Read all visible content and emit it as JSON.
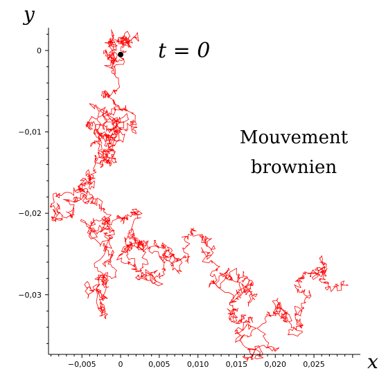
{
  "chart_data": {
    "type": "line",
    "xlabel": "x",
    "ylabel": "y",
    "xlim": [
      -0.0095,
      0.031
    ],
    "ylim": [
      -0.0375,
      0.0028
    ],
    "x_ticks": [
      {
        "value": -0.005,
        "label": "−0,005"
      },
      {
        "value": 0,
        "label": "0"
      },
      {
        "value": 0.005,
        "label": "0,005"
      },
      {
        "value": 0.01,
        "label": "0,010"
      },
      {
        "value": 0.015,
        "label": "0,015"
      },
      {
        "value": 0.02,
        "label": "0,020"
      },
      {
        "value": 0.025,
        "label": "0,025"
      }
    ],
    "y_ticks": [
      {
        "value": 0,
        "label": "0"
      },
      {
        "value": -0.01,
        "label": "−0,01"
      },
      {
        "value": -0.02,
        "label": "−0,02"
      },
      {
        "value": -0.03,
        "label": "−0,03"
      }
    ],
    "annotations": {
      "start_label": "t = 0",
      "title_line1": "Mouvement",
      "title_line2": "brownien"
    },
    "start_point": {
      "x": 0,
      "y": -0.0005
    },
    "series": [
      {
        "color": "#ff0000",
        "random_walk": true,
        "waypoints": [
          [
            0,
            -0.0005
          ],
          [
            0.0005,
            0.0018
          ],
          [
            -0.0012,
            0.001
          ],
          [
            -0.002,
            -0.002
          ],
          [
            -0.0025,
            -0.005
          ],
          [
            -0.002,
            -0.0075
          ],
          [
            -0.004,
            -0.009
          ],
          [
            -0.002,
            -0.0105
          ],
          [
            0.0005,
            -0.0085
          ],
          [
            0.0015,
            -0.01
          ],
          [
            -0.001,
            -0.0115
          ],
          [
            -0.002,
            -0.0125
          ],
          [
            -0.004,
            -0.015
          ],
          [
            -0.0045,
            -0.0175
          ],
          [
            -0.0085,
            -0.0205
          ],
          [
            -0.004,
            -0.0185
          ],
          [
            -0.002,
            -0.021
          ],
          [
            -0.001,
            -0.025
          ],
          [
            -0.002,
            -0.029
          ],
          [
            -0.002,
            -0.032
          ],
          [
            -0.0015,
            -0.0235
          ],
          [
            0.001,
            -0.0205
          ],
          [
            0.002,
            -0.024
          ],
          [
            0.0015,
            -0.026
          ],
          [
            0.003,
            -0.024
          ],
          [
            0.004,
            -0.028
          ],
          [
            0.006,
            -0.024
          ],
          [
            0.008,
            -0.027
          ],
          [
            0.011,
            -0.0235
          ],
          [
            0.013,
            -0.029
          ],
          [
            0.015,
            -0.027
          ],
          [
            0.0165,
            -0.0295
          ],
          [
            0.015,
            -0.032
          ],
          [
            0.0175,
            -0.034
          ],
          [
            0.0175,
            -0.038
          ],
          [
            0.021,
            -0.031
          ],
          [
            0.023,
            -0.0345
          ],
          [
            0.024,
            -0.028
          ],
          [
            0.026,
            -0.026
          ],
          [
            0.029,
            -0.029
          ]
        ]
      }
    ]
  }
}
